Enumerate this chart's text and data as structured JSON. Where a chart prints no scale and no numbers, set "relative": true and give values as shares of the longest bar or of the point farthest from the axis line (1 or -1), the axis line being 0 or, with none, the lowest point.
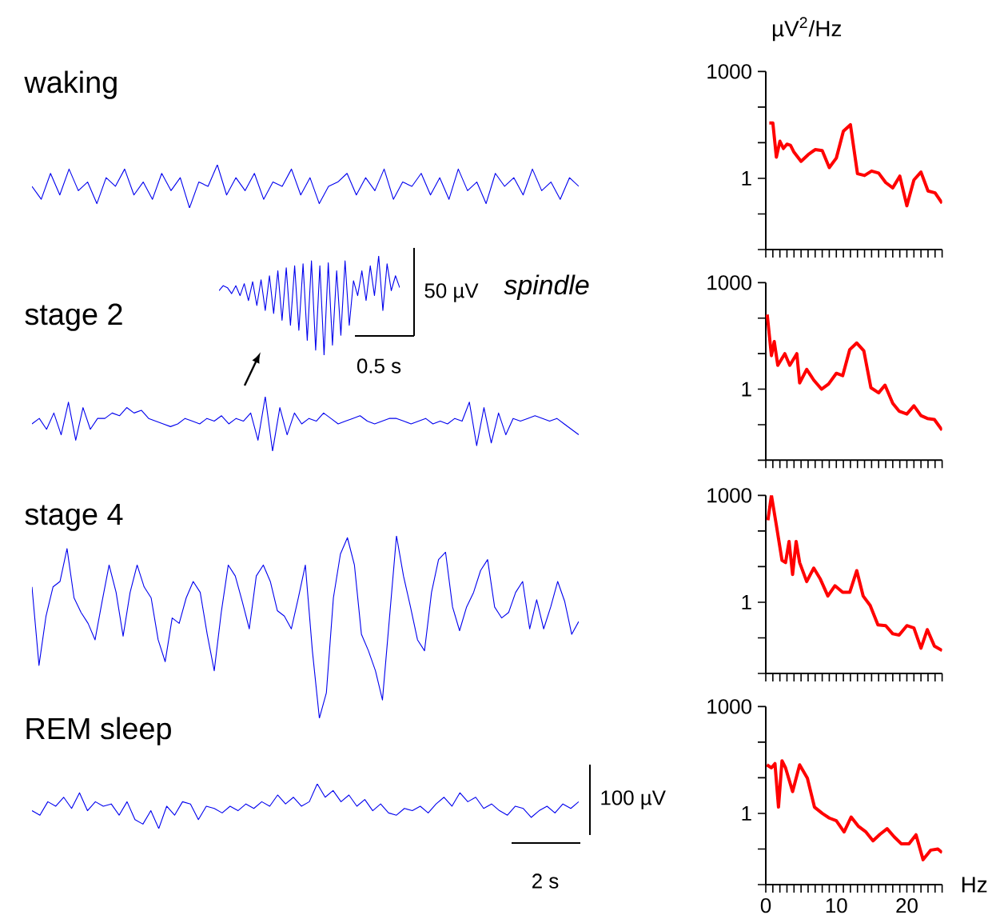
{
  "chart_data": [
    {
      "type": "line",
      "title": "waking",
      "relative": true,
      "color": "#0000ee",
      "categories": [
        null,
        null,
        null,
        null,
        null,
        null,
        null,
        null,
        null,
        null,
        null,
        null,
        null,
        null,
        null,
        null,
        null,
        null,
        null,
        null,
        null,
        null,
        null,
        null,
        null,
        null,
        null,
        null,
        null,
        null,
        null,
        null,
        null,
        null,
        null,
        null,
        null,
        null,
        null,
        null,
        null,
        null,
        null,
        null,
        null,
        null,
        null,
        null,
        null,
        null,
        null,
        null,
        null,
        null,
        null,
        null,
        null,
        null,
        null,
        null
      ],
      "values": [
        0.5,
        0.2,
        0.8,
        0.3,
        0.9,
        0.4,
        0.6,
        0.1,
        0.7,
        0.5,
        0.9,
        0.3,
        0.6,
        0.2,
        0.8,
        0.4,
        0.7,
        0.0,
        0.6,
        0.5,
        1.0,
        0.3,
        0.7,
        0.4,
        0.8,
        0.2,
        0.6,
        0.5,
        0.9,
        0.3,
        0.7,
        0.1,
        0.5,
        0.6,
        0.8,
        0.3,
        0.7,
        0.4,
        0.9,
        0.2,
        0.6,
        0.5,
        0.8,
        0.3,
        0.7,
        0.2,
        0.9,
        0.4,
        0.6,
        0.1,
        0.8,
        0.5,
        0.7,
        0.3,
        0.9,
        0.4,
        0.6,
        0.2,
        0.7,
        0.5
      ]
    },
    {
      "type": "line",
      "ylabel": "µV$^{2}$/Hz",
      "log": "y",
      "color": "#ff0000",
      "xlim": [
        0,
        25
      ],
      "ylim": [
        0.01,
        1000
      ],
      "tick_labels": "y",
      "yticks": [
        {
          "value": 0.01,
          "label": null
        },
        {
          "value": 0.1,
          "label": null
        },
        1,
        {
          "value": 10,
          "label": null
        },
        {
          "value": 100,
          "label": null
        },
        1000
      ],
      "xticks": [
        0,
        {
          "value": 1,
          "label": null
        },
        {
          "value": 2,
          "label": null
        },
        {
          "value": 3,
          "label": null
        },
        {
          "value": 4,
          "label": null
        },
        {
          "value": 5,
          "label": null
        },
        {
          "value": 6,
          "label": null
        },
        {
          "value": 7,
          "label": null
        },
        {
          "value": 8,
          "label": null
        },
        {
          "value": 9,
          "label": null
        },
        10,
        {
          "value": 11,
          "label": null
        },
        {
          "value": 12,
          "label": null
        },
        {
          "value": 13,
          "label": null
        },
        {
          "value": 14,
          "label": null
        },
        {
          "value": 15,
          "label": null
        },
        {
          "value": 16,
          "label": null
        },
        {
          "value": 17,
          "label": null
        },
        {
          "value": 18,
          "label": null
        },
        {
          "value": 19,
          "label": null
        },
        20,
        {
          "value": 21,
          "label": null
        },
        {
          "value": 22,
          "label": null
        },
        {
          "value": 23,
          "label": null
        },
        {
          "value": 24,
          "label": null
        },
        {
          "value": 25,
          "label": null
        }
      ],
      "x": [
        0.5,
        1,
        1.5,
        2,
        2.5,
        3,
        3.5,
        4,
        5,
        6,
        7,
        8,
        9,
        10,
        11,
        12,
        13,
        14,
        15,
        16,
        17,
        18,
        19,
        20,
        21,
        22,
        23,
        24,
        25
      ],
      "values": [
        36,
        36,
        3.9,
        11,
        6.9,
        9.1,
        8.5,
        5.4,
        3.0,
        4.6,
        6.4,
        6.0,
        2.0,
        3.7,
        21,
        32,
        1.35,
        1.2,
        1.6,
        1.4,
        0.76,
        0.54,
        1.15,
        0.17,
        0.9,
        1.5,
        0.44,
        0.39,
        0.2
      ]
    },
    {
      "type": "line",
      "relative": true,
      "color": "#0000ee",
      "annotations": [
        "50 µV",
        "0.5 s",
        "spindle"
      ],
      "categories": [
        null,
        null,
        null,
        null,
        null,
        null,
        null,
        null,
        null,
        null,
        null,
        null,
        null,
        null,
        null,
        null,
        null,
        null,
        null,
        null,
        null,
        null,
        null,
        null,
        null,
        null,
        null,
        null,
        null,
        null,
        null,
        null,
        null,
        null,
        null,
        null,
        null,
        null,
        null,
        null,
        null,
        null,
        null,
        null
      ],
      "values": [
        0.65,
        0.7,
        0.68,
        0.62,
        0.7,
        0.6,
        0.72,
        0.55,
        0.74,
        0.5,
        0.76,
        0.45,
        0.8,
        0.42,
        0.85,
        0.35,
        0.88,
        0.3,
        0.9,
        0.25,
        0.92,
        0.15,
        0.95,
        0.05,
        0.9,
        0.0,
        0.93,
        0.1,
        0.85,
        0.2,
        0.95,
        0.3,
        0.75,
        0.6,
        0.85,
        0.55,
        0.9,
        0.6,
        1.0,
        0.45,
        0.92,
        0.65,
        0.8,
        0.68
      ]
    },
    {
      "type": "line",
      "title": "stage 2",
      "relative": true,
      "color": "#0000ee",
      "categories": [
        null,
        null,
        null,
        null,
        null,
        null,
        null,
        null,
        null,
        null,
        null,
        null,
        null,
        null,
        null,
        null,
        null,
        null,
        null,
        null,
        null,
        null,
        null,
        null,
        null,
        null,
        null,
        null,
        null,
        null,
        null,
        null,
        null,
        null,
        null,
        null,
        null,
        null,
        null,
        null,
        null,
        null,
        null,
        null,
        null,
        null,
        null,
        null,
        null,
        null,
        null,
        null,
        null,
        null,
        null,
        null,
        null,
        null,
        null,
        null,
        null,
        null,
        null,
        null,
        null,
        null,
        null,
        null,
        null,
        null,
        null,
        null,
        null,
        null,
        null,
        null
      ],
      "values": [
        0.5,
        0.6,
        0.4,
        0.7,
        0.3,
        0.9,
        0.2,
        0.8,
        0.4,
        0.6,
        0.6,
        0.7,
        0.65,
        0.8,
        0.7,
        0.75,
        0.6,
        0.55,
        0.5,
        0.45,
        0.5,
        0.6,
        0.55,
        0.5,
        0.6,
        0.55,
        0.65,
        0.5,
        0.6,
        0.55,
        0.7,
        0.2,
        1.0,
        0.0,
        0.8,
        0.3,
        0.7,
        0.5,
        0.6,
        0.55,
        0.7,
        0.6,
        0.5,
        0.55,
        0.6,
        0.65,
        0.55,
        0.5,
        0.55,
        0.6,
        0.6,
        0.55,
        0.5,
        0.55,
        0.6,
        0.5,
        0.55,
        0.5,
        0.6,
        0.55,
        0.9,
        0.1,
        0.8,
        0.15,
        0.7,
        0.3,
        0.6,
        0.55,
        0.6,
        0.65,
        0.6,
        0.55,
        0.6,
        0.5,
        0.4,
        0.3
      ]
    },
    {
      "type": "line",
      "log": "y",
      "color": "#ff0000",
      "xlim": [
        0,
        25
      ],
      "ylim": [
        0.01,
        1000
      ],
      "tick_labels": "y",
      "yticks": [
        {
          "value": 0.01,
          "label": null
        },
        {
          "value": 0.1,
          "label": null
        },
        1,
        {
          "value": 10,
          "label": null
        },
        {
          "value": 100,
          "label": null
        },
        1000
      ],
      "xticks": [
        0,
        {
          "value": 1,
          "label": null
        },
        {
          "value": 2,
          "label": null
        },
        {
          "value": 3,
          "label": null
        },
        {
          "value": 4,
          "label": null
        },
        {
          "value": 5,
          "label": null
        },
        {
          "value": 6,
          "label": null
        },
        {
          "value": 7,
          "label": null
        },
        {
          "value": 8,
          "label": null
        },
        {
          "value": 9,
          "label": null
        },
        10,
        {
          "value": 11,
          "label": null
        },
        {
          "value": 12,
          "label": null
        },
        {
          "value": 13,
          "label": null
        },
        {
          "value": 14,
          "label": null
        },
        {
          "value": 15,
          "label": null
        },
        {
          "value": 16,
          "label": null
        },
        {
          "value": 17,
          "label": null
        },
        {
          "value": 18,
          "label": null
        },
        {
          "value": 19,
          "label": null
        },
        20,
        {
          "value": 21,
          "label": null
        },
        {
          "value": 22,
          "label": null
        },
        {
          "value": 23,
          "label": null
        },
        {
          "value": 24,
          "label": null
        },
        {
          "value": 25,
          "label": null
        }
      ],
      "x": [
        0.2,
        0.8,
        1.2,
        1.7,
        2.7,
        3.4,
        4.4,
        4.8,
        5.8,
        6.8,
        7.9,
        8.9,
        10,
        10.9,
        11.9,
        12.9,
        13.9,
        14.9,
        16,
        16.9,
        18,
        18.9,
        20,
        21,
        22,
        22.9,
        23.9,
        25
      ],
      "values": [
        126,
        8.8,
        22,
        4.7,
        10,
        4.7,
        10,
        1.5,
        3.6,
        1.8,
        1,
        1.4,
        2.8,
        2.4,
        13,
        20,
        12,
        1.1,
        0.79,
        1.3,
        0.4,
        0.24,
        0.2,
        0.34,
        0.18,
        0.15,
        0.14,
        0.07
      ]
    },
    {
      "type": "line",
      "title": "stage 4",
      "relative": true,
      "color": "#0000ee",
      "categories": [
        null,
        null,
        null,
        null,
        null,
        null,
        null,
        null,
        null,
        null,
        null,
        null,
        null,
        null,
        null,
        null,
        null,
        null,
        null,
        null,
        null,
        null,
        null,
        null,
        null,
        null,
        null,
        null,
        null,
        null,
        null,
        null,
        null,
        null,
        null,
        null,
        null,
        null,
        null,
        null,
        null,
        null,
        null,
        null,
        null,
        null,
        null,
        null,
        null,
        null,
        null,
        null,
        null,
        null,
        null,
        null,
        null,
        null,
        null,
        null,
        null,
        null,
        null,
        null,
        null,
        null,
        null,
        null,
        null,
        null,
        null,
        null,
        null,
        null,
        null,
        null,
        null,
        null,
        null
      ],
      "values": [
        0.72,
        0.29,
        0.56,
        0.72,
        0.75,
        0.93,
        0.66,
        0.58,
        0.52,
        0.43,
        0.64,
        0.84,
        0.69,
        0.45,
        0.69,
        0.84,
        0.72,
        0.66,
        0.43,
        0.31,
        0.55,
        0.52,
        0.66,
        0.75,
        0.69,
        0.46,
        0.26,
        0.58,
        0.84,
        0.78,
        0.64,
        0.49,
        0.78,
        0.84,
        0.75,
        0.59,
        0.56,
        0.49,
        0.66,
        0.84,
        0.37,
        0.0,
        0.14,
        0.66,
        0.9,
        0.99,
        0.84,
        0.46,
        0.37,
        0.26,
        0.1,
        0.55,
        1.0,
        0.78,
        0.61,
        0.43,
        0.37,
        0.69,
        0.87,
        0.91,
        0.61,
        0.48,
        0.61,
        0.69,
        0.81,
        0.87,
        0.61,
        0.55,
        0.58,
        0.69,
        0.75,
        0.49,
        0.65,
        0.49,
        0.61,
        0.75,
        0.64,
        0.46,
        0.53
      ]
    },
    {
      "type": "line",
      "log": "y",
      "color": "#ff0000",
      "xlim": [
        0,
        25
      ],
      "ylim": [
        0.01,
        1000
      ],
      "tick_labels": "y",
      "yticks": [
        {
          "value": 0.01,
          "label": null
        },
        {
          "value": 0.1,
          "label": null
        },
        1,
        {
          "value": 10,
          "label": null
        },
        {
          "value": 100,
          "label": null
        },
        1000
      ],
      "xticks": [
        0,
        {
          "value": 1,
          "label": null
        },
        {
          "value": 2,
          "label": null
        },
        {
          "value": 3,
          "label": null
        },
        {
          "value": 4,
          "label": null
        },
        {
          "value": 5,
          "label": null
        },
        {
          "value": 6,
          "label": null
        },
        {
          "value": 7,
          "label": null
        },
        {
          "value": 8,
          "label": null
        },
        {
          "value": 9,
          "label": null
        },
        10,
        {
          "value": 11,
          "label": null
        },
        {
          "value": 12,
          "label": null
        },
        {
          "value": 13,
          "label": null
        },
        {
          "value": 14,
          "label": null
        },
        {
          "value": 15,
          "label": null
        },
        {
          "value": 16,
          "label": null
        },
        {
          "value": 17,
          "label": null
        },
        {
          "value": 18,
          "label": null
        },
        {
          "value": 19,
          "label": null
        },
        20,
        {
          "value": 21,
          "label": null
        },
        {
          "value": 22,
          "label": null
        },
        {
          "value": 23,
          "label": null
        },
        {
          "value": 24,
          "label": null
        },
        {
          "value": 25,
          "label": null
        }
      ],
      "x": [
        0.3,
        0.8,
        1.5,
        2.3,
        2.8,
        3.3,
        3.8,
        4.3,
        4.8,
        5.8,
        6.8,
        7.7,
        8.8,
        9.8,
        10.9,
        11.9,
        12.9,
        13.8,
        14.8,
        15.9,
        17,
        18,
        18.9,
        20,
        21,
        22,
        22.9,
        23.9,
        25
      ],
      "values": [
        200,
        1000,
        145,
        15,
        13,
        51,
        6,
        51,
        13,
        3.8,
        9.1,
        4.6,
        1.5,
        2.9,
        1.9,
        1.9,
        7.7,
        1.5,
        0.81,
        0.23,
        0.22,
        0.13,
        0.12,
        0.22,
        0.19,
        0.051,
        0.17,
        0.059,
        0.044
      ]
    },
    {
      "type": "line",
      "title": "REM sleep",
      "relative": true,
      "color": "#0000ee",
      "annotations": [
        "100 µV",
        "2 s"
      ],
      "categories": [
        null,
        null,
        null,
        null,
        null,
        null,
        null,
        null,
        null,
        null,
        null,
        null,
        null,
        null,
        null,
        null,
        null,
        null,
        null,
        null,
        null,
        null,
        null,
        null,
        null,
        null,
        null,
        null,
        null,
        null,
        null,
        null,
        null,
        null,
        null,
        null,
        null,
        null,
        null,
        null,
        null,
        null,
        null,
        null,
        null,
        null,
        null,
        null,
        null,
        null,
        null,
        null,
        null,
        null,
        null,
        null,
        null,
        null,
        null,
        null,
        null,
        null,
        null,
        null,
        null,
        null,
        null,
        null,
        null,
        null
      ],
      "values": [
        0.4,
        0.3,
        0.6,
        0.5,
        0.7,
        0.45,
        0.8,
        0.4,
        0.6,
        0.5,
        0.55,
        0.3,
        0.6,
        0.2,
        0.1,
        0.4,
        0.0,
        0.5,
        0.3,
        0.6,
        0.55,
        0.2,
        0.5,
        0.45,
        0.35,
        0.5,
        0.4,
        0.55,
        0.45,
        0.6,
        0.5,
        0.75,
        0.55,
        0.7,
        0.5,
        0.6,
        1.0,
        0.7,
        0.85,
        0.6,
        0.75,
        0.5,
        0.65,
        0.4,
        0.55,
        0.35,
        0.3,
        0.45,
        0.4,
        0.5,
        0.35,
        0.55,
        0.7,
        0.5,
        0.8,
        0.6,
        0.7,
        0.45,
        0.55,
        0.4,
        0.3,
        0.5,
        0.45,
        0.25,
        0.4,
        0.5,
        0.35,
        0.55,
        0.45,
        0.6
      ]
    },
    {
      "type": "line",
      "xlabel": "Hz",
      "log": "y",
      "color": "#ff0000",
      "xlim": [
        0,
        25
      ],
      "ylim": [
        0.01,
        1000
      ],
      "yticks": [
        {
          "value": 0.01,
          "label": null
        },
        {
          "value": 0.1,
          "label": null
        },
        1,
        {
          "value": 10,
          "label": null
        },
        {
          "value": 100,
          "label": null
        },
        1000
      ],
      "xticks": [
        0,
        {
          "value": 1,
          "label": null
        },
        {
          "value": 2,
          "label": null
        },
        {
          "value": 3,
          "label": null
        },
        {
          "value": 4,
          "label": null
        },
        {
          "value": 5,
          "label": null
        },
        {
          "value": 6,
          "label": null
        },
        {
          "value": 7,
          "label": null
        },
        {
          "value": 8,
          "label": null
        },
        {
          "value": 9,
          "label": null
        },
        10,
        {
          "value": 11,
          "label": null
        },
        {
          "value": 12,
          "label": null
        },
        {
          "value": 13,
          "label": null
        },
        {
          "value": 14,
          "label": null
        },
        {
          "value": 15,
          "label": null
        },
        {
          "value": 16,
          "label": null
        },
        {
          "value": 17,
          "label": null
        },
        {
          "value": 18,
          "label": null
        },
        {
          "value": 19,
          "label": null
        },
        20,
        {
          "value": 21,
          "label": null
        },
        {
          "value": 22,
          "label": null
        },
        {
          "value": 23,
          "label": null
        },
        {
          "value": 24,
          "label": null
        },
        {
          "value": 25,
          "label": null
        }
      ],
      "x": [
        0.15,
        0.8,
        1.3,
        1.8,
        2.3,
        2.8,
        3.8,
        4.8,
        5.9,
        6.9,
        8,
        9,
        10,
        11.1,
        12.1,
        13.1,
        14.2,
        15.2,
        16.2,
        17.2,
        18.2,
        19.2,
        20.3,
        21.3,
        22.3,
        23.4,
        24.4,
        25
      ],
      "values": [
        23,
        19,
        25,
        1.5,
        30,
        19,
        4.1,
        23,
        9.7,
        1.5,
        1.0,
        0.74,
        0.62,
        0.3,
        0.79,
        0.44,
        0.3,
        0.17,
        0.26,
        0.37,
        0.22,
        0.14,
        0.14,
        0.25,
        0.05,
        0.093,
        0.1,
        0.079
      ]
    }
  ]
}
